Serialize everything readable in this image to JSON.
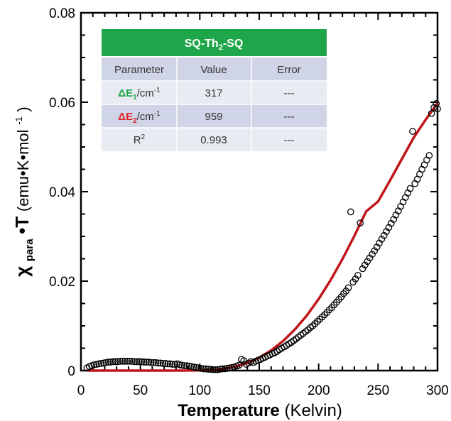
{
  "chart_data": {
    "type": "scatter",
    "xlim": [
      0,
      300
    ],
    "ylim": [
      0,
      0.08
    ],
    "x_ticks": [
      0,
      50,
      100,
      150,
      200,
      250,
      300
    ],
    "y_ticks": [
      0,
      0.02,
      0.04,
      0.06,
      0.08
    ],
    "x_tick_labels": [
      "0",
      "50",
      "100",
      "150",
      "200",
      "250",
      "300"
    ],
    "y_tick_labels": [
      "0",
      "0.02",
      "0.04",
      "0.06",
      "0.08"
    ],
    "xlabel_bold": "Temperature",
    "xlabel_normal": "(Kelvin)",
    "ylabel": {
      "chi": "χ",
      "sub": "para",
      "main": "•T",
      "unit_open": " (emu•K•mol",
      "unit_sup": "-1",
      "unit_close": ")"
    },
    "grid": false,
    "colors": {
      "fit_line": "#c0161a",
      "markers": "#000000",
      "table_header": "#1fa64a",
      "row_dark": "#cfd4e6",
      "row_light": "#e9ebf3",
      "green_label": "#1fa64a",
      "red_label": "#e0242a"
    },
    "series": [
      {
        "marker": "open-circle",
        "points": [
          [
            5,
            0.0006
          ],
          [
            7,
            0.0009
          ],
          [
            9,
            0.0011
          ],
          [
            11,
            0.0013
          ],
          [
            13,
            0.0014
          ],
          [
            15,
            0.0015
          ],
          [
            17,
            0.0016
          ],
          [
            19,
            0.0017
          ],
          [
            21,
            0.0018
          ],
          [
            23,
            0.0019
          ],
          [
            25,
            0.0019
          ],
          [
            27,
            0.002
          ],
          [
            29,
            0.002
          ],
          [
            31,
            0.002
          ],
          [
            33,
            0.0021
          ],
          [
            35,
            0.0021
          ],
          [
            37,
            0.0021
          ],
          [
            39,
            0.0021
          ],
          [
            41,
            0.0021
          ],
          [
            43,
            0.0021
          ],
          [
            45,
            0.002
          ],
          [
            47,
            0.002
          ],
          [
            49,
            0.002
          ],
          [
            51,
            0.002
          ],
          [
            53,
            0.0019
          ],
          [
            55,
            0.0019
          ],
          [
            57,
            0.0019
          ],
          [
            59,
            0.0018
          ],
          [
            61,
            0.0018
          ],
          [
            63,
            0.0018
          ],
          [
            65,
            0.0017
          ],
          [
            67,
            0.0017
          ],
          [
            69,
            0.0016
          ],
          [
            71,
            0.0016
          ],
          [
            73,
            0.0015
          ],
          [
            75,
            0.0015
          ],
          [
            77,
            0.0014
          ],
          [
            79,
            0.0014
          ],
          [
            81,
            0.0015
          ],
          [
            83,
            0.0013
          ],
          [
            85,
            0.0012
          ],
          [
            87,
            0.0011
          ],
          [
            89,
            0.0011
          ],
          [
            91,
            0.001
          ],
          [
            93,
            0.0009
          ],
          [
            95,
            0.0008
          ],
          [
            97,
            0.0007
          ],
          [
            99,
            0.0006
          ],
          [
            101,
            0.0005
          ],
          [
            103,
            0.0004
          ],
          [
            105,
            0.0004
          ],
          [
            107,
            0.0003
          ],
          [
            109,
            0.0003
          ],
          [
            111,
            0.0002
          ],
          [
            113,
            0.0002
          ],
          [
            115,
            0.0002
          ],
          [
            117,
            0.0003
          ],
          [
            119,
            0.0004
          ],
          [
            121,
            0.0004
          ],
          [
            123,
            0.0005
          ],
          [
            125,
            0.0006
          ],
          [
            127,
            0.0007
          ],
          [
            129,
            0.0008
          ],
          [
            131,
            0.001
          ],
          [
            133,
            0.0012
          ],
          [
            135,
            0.0025
          ],
          [
            137,
            0.0022
          ],
          [
            139,
            0.0014
          ],
          [
            141,
            0.0017
          ],
          [
            143,
            0.002
          ],
          [
            145,
            0.0018
          ],
          [
            147,
            0.0021
          ],
          [
            149,
            0.0023
          ],
          [
            151,
            0.0025
          ],
          [
            153,
            0.0028
          ],
          [
            155,
            0.003
          ],
          [
            157,
            0.0033
          ],
          [
            159,
            0.0035
          ],
          [
            161,
            0.0038
          ],
          [
            163,
            0.004
          ],
          [
            165,
            0.0043
          ],
          [
            167,
            0.0047
          ],
          [
            169,
            0.005
          ],
          [
            171,
            0.0053
          ],
          [
            173,
            0.0056
          ],
          [
            175,
            0.006
          ],
          [
            177,
            0.0063
          ],
          [
            179,
            0.0067
          ],
          [
            181,
            0.0071
          ],
          [
            183,
            0.0075
          ],
          [
            185,
            0.0079
          ],
          [
            187,
            0.0083
          ],
          [
            189,
            0.0087
          ],
          [
            191,
            0.0091
          ],
          [
            193,
            0.0096
          ],
          [
            195,
            0.01
          ],
          [
            197,
            0.0105
          ],
          [
            199,
            0.011
          ],
          [
            201,
            0.0115
          ],
          [
            203,
            0.012
          ],
          [
            205,
            0.0125
          ],
          [
            207,
            0.013
          ],
          [
            209,
            0.0136
          ],
          [
            211,
            0.0141
          ],
          [
            213,
            0.0147
          ],
          [
            215,
            0.0153
          ],
          [
            217,
            0.0159
          ],
          [
            219,
            0.0165
          ],
          [
            221,
            0.0172
          ],
          [
            223,
            0.0178
          ],
          [
            225,
            0.0185
          ],
          [
            227,
            0.0355
          ],
          [
            229,
            0.0198
          ],
          [
            231,
            0.0205
          ],
          [
            233,
            0.0213
          ],
          [
            235,
            0.033
          ],
          [
            237,
            0.0228
          ],
          [
            239,
            0.0236
          ],
          [
            241,
            0.0244
          ],
          [
            243,
            0.0252
          ],
          [
            245,
            0.026
          ],
          [
            247,
            0.0268
          ],
          [
            249,
            0.0276
          ],
          [
            251,
            0.0285
          ],
          [
            253,
            0.0294
          ],
          [
            255,
            0.0302
          ],
          [
            257,
            0.0311
          ],
          [
            259,
            0.032
          ],
          [
            261,
            0.0329
          ],
          [
            263,
            0.0338
          ],
          [
            265,
            0.0348
          ],
          [
            267,
            0.0357
          ],
          [
            269,
            0.0367
          ],
          [
            271,
            0.0377
          ],
          [
            273,
            0.0387
          ],
          [
            275,
            0.0397
          ],
          [
            277,
            0.0407
          ],
          [
            279,
            0.0535
          ],
          [
            281,
            0.0418
          ],
          [
            283,
            0.0428
          ],
          [
            285,
            0.0439
          ],
          [
            287,
            0.045
          ],
          [
            289,
            0.046
          ],
          [
            291,
            0.0471
          ],
          [
            293,
            0.0481
          ],
          [
            295,
            0.0575
          ],
          [
            297,
            0.0588
          ],
          [
            299,
            0.0597
          ],
          [
            300,
            0.0585
          ]
        ]
      },
      {
        "style": "fit-line",
        "points": [
          [
            5,
            0
          ],
          [
            20,
            0
          ],
          [
            40,
            0
          ],
          [
            60,
            0
          ],
          [
            80,
            0
          ],
          [
            100,
            5e-05
          ],
          [
            110,
            0.00015
          ],
          [
            120,
            0.0004
          ],
          [
            130,
            0.0009
          ],
          [
            140,
            0.0017
          ],
          [
            150,
            0.0029
          ],
          [
            160,
            0.0045
          ],
          [
            170,
            0.0066
          ],
          [
            180,
            0.0092
          ],
          [
            190,
            0.0123
          ],
          [
            200,
            0.016
          ],
          [
            210,
            0.0202
          ],
          [
            220,
            0.0249
          ],
          [
            230,
            0.0301
          ],
          [
            240,
            0.0356
          ],
          [
            250,
            0.0378
          ],
          [
            260,
            0.0425
          ],
          [
            270,
            0.0473
          ],
          [
            280,
            0.0521
          ],
          [
            290,
            0.0561
          ],
          [
            300,
            0.0598
          ]
        ]
      }
    ],
    "table": {
      "title_main": "SQ-Th",
      "title_sub": "2",
      "title_end": "-SQ",
      "headers": [
        "Parameter",
        "Value",
        "Error"
      ],
      "rows": [
        {
          "param_main": "ΔE",
          "param_sub": "1",
          "param_unit": "/cm",
          "param_sup": "-1",
          "value": "317",
          "error": "---"
        },
        {
          "param_main": "ΔE",
          "param_sub": "2",
          "param_unit": "/cm",
          "param_sup": "-1",
          "value": "959",
          "error": "---"
        },
        {
          "param_main": "R",
          "param_sub": "",
          "param_unit": "",
          "param_sup": "2",
          "value": "0.993",
          "error": "---"
        }
      ]
    }
  }
}
